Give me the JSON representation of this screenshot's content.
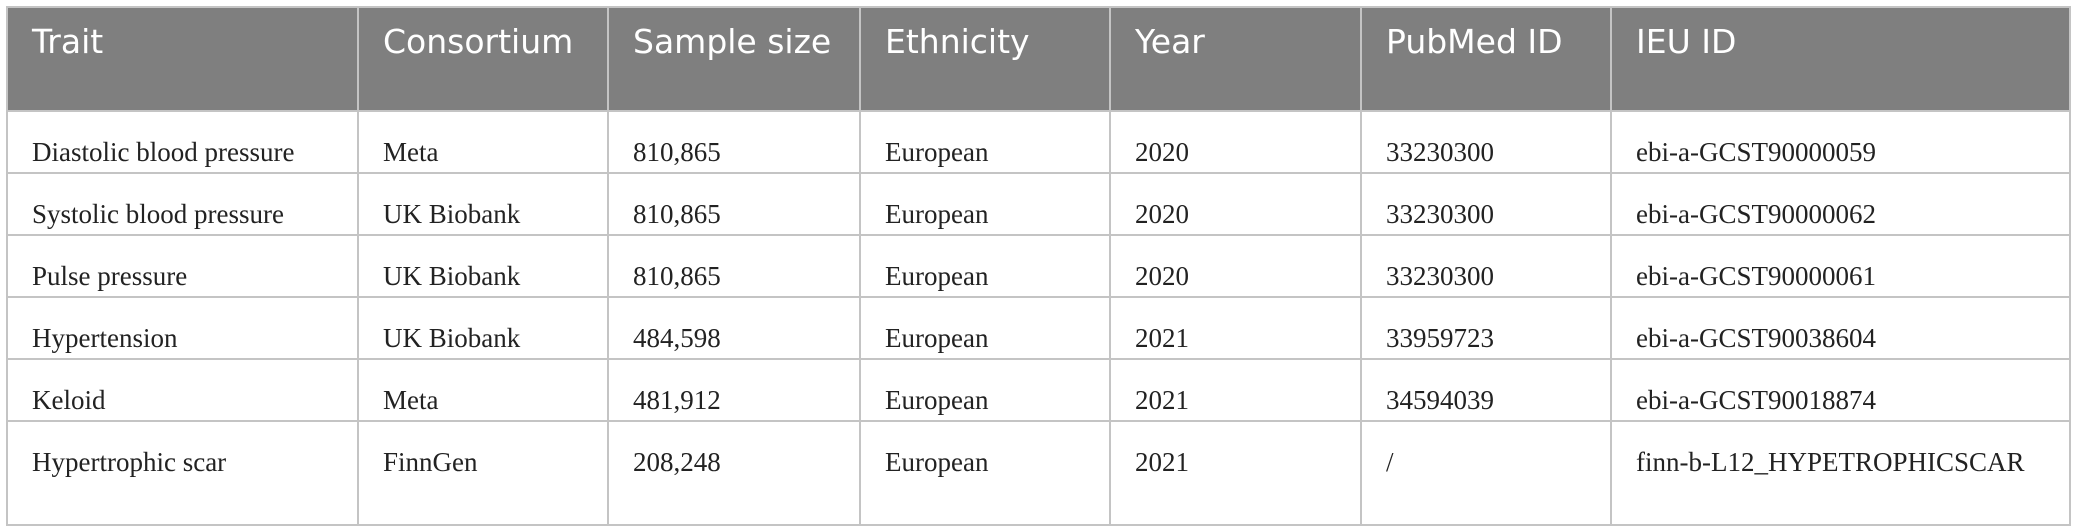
{
  "table": {
    "columns": [
      "Trait",
      "Consortium",
      "Sample size",
      "Ethnicity",
      "Year",
      "PubMed ID",
      "IEU ID"
    ],
    "rows": [
      [
        "Diastolic blood pressure",
        "Meta",
        "810,865",
        "European",
        "2020",
        "33230300",
        "ebi-a-GCST90000059"
      ],
      [
        "Systolic blood pressure",
        "UK Biobank",
        "810,865",
        "European",
        "2020",
        "33230300",
        "ebi-a-GCST90000062"
      ],
      [
        "Pulse pressure",
        "UK Biobank",
        "810,865",
        "European",
        "2020",
        "33230300",
        "ebi-a-GCST90000061"
      ],
      [
        "Hypertension",
        "UK Biobank",
        "484,598",
        "European",
        "2021",
        "33959723",
        "ebi-a-GCST90038604"
      ],
      [
        "Keloid",
        "Meta",
        "481,912",
        "European",
        "2021",
        "34594039",
        "ebi-a-GCST90018874"
      ],
      [
        "Hypertrophic scar",
        "FinnGen",
        "208,248",
        "European",
        "2021",
        "/",
        "finn-b-L12_HYPETROPHICSCAR"
      ]
    ]
  },
  "colors": {
    "header_background": "#7f7f7f",
    "header_text": "#ffffff",
    "border": "#c4c4c4",
    "body_text": "#222222"
  }
}
